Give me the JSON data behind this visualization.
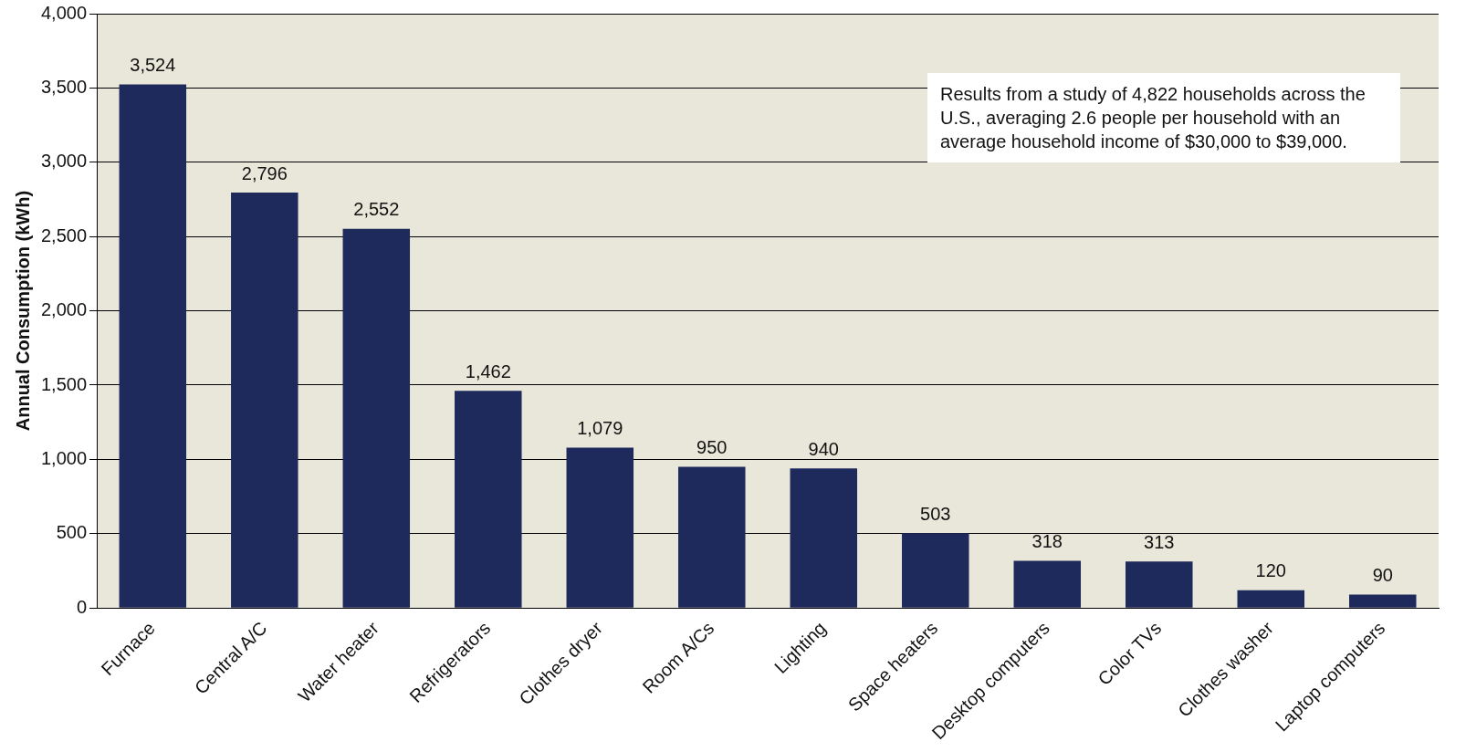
{
  "chart_data": {
    "type": "bar",
    "ylabel": "Annual Consumption (kWh)",
    "categories": [
      "Furnace",
      "Central A/C",
      "Water heater",
      "Refrigerators",
      "Clothes dryer",
      "Room A/Cs",
      "Lighting",
      "Space heaters",
      "Desktop computers",
      "Color TVs",
      "Clothes washer",
      "Laptop computers"
    ],
    "values": [
      3524,
      2796,
      2552,
      1462,
      1079,
      950,
      940,
      503,
      318,
      313,
      120,
      90
    ],
    "value_labels": [
      "3,524",
      "2,796",
      "2,552",
      "1,462",
      "1,079",
      "950",
      "940",
      "503",
      "318",
      "313",
      "120",
      "90"
    ],
    "color": "#1f2a5c",
    "ylim": [
      0,
      4000
    ],
    "yticks": [
      {
        "value": 0,
        "label": "0"
      },
      {
        "value": 500,
        "label": "500"
      },
      {
        "value": 1000,
        "label": "1,000"
      },
      {
        "value": 1500,
        "label": "1,500"
      },
      {
        "value": 2000,
        "label": "2,000"
      },
      {
        "value": 2500,
        "label": "2,500"
      },
      {
        "value": 3000,
        "label": "3,000"
      },
      {
        "value": 3500,
        "label": "3,500"
      },
      {
        "value": 4000,
        "label": "4,000"
      }
    ],
    "grid": "y",
    "annotations": [
      "Results from a study of 4,822 households across the U.S., averaging 2.6 people per household with an average household income of $30,000 to $39,000."
    ]
  }
}
